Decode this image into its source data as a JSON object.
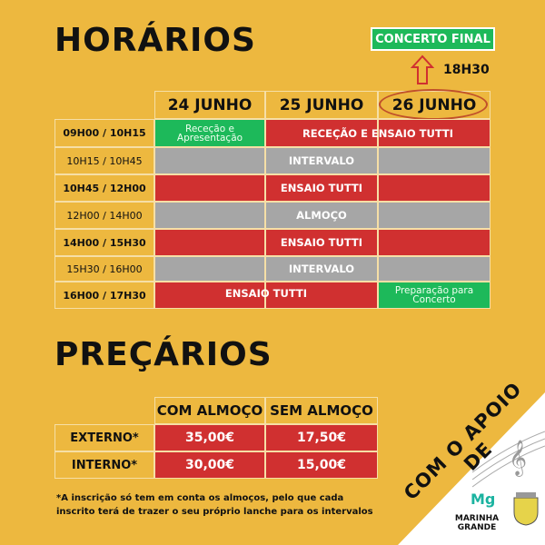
{
  "schedule": {
    "title": "HORÁRIOS",
    "concert_label": "CONCERTO FINAL",
    "concert_time": "18H30",
    "days": [
      "24 JUNHO",
      "25 JUNHO",
      "26 JUNHO"
    ],
    "times": [
      "09H00 / 10H15",
      "10H15 / 10H45",
      "10H45 / 12H00",
      "12H00 / 14H00",
      "14H00 / 15H30",
      "15H30 / 16H00",
      "16H00 / 17H30"
    ],
    "activities": {
      "rececao_apresentacao": "Receção e Apresentação",
      "rececao_ensaio": "RECEÇÃO E ENSAIO TUTTI",
      "intervalo": "INTERVALO",
      "ensaio": "ENSAIO TUTTI",
      "almoco": "ALMOÇO",
      "preparacao": "Preparação para Concerto"
    },
    "colors": {
      "ensaio": "#D03030",
      "pausa": "#A6A6A6",
      "especial": "#1DB95A",
      "background": "#EDB83F"
    }
  },
  "prices": {
    "title": "PREÇÁRIOS",
    "columns": [
      "COM ALMOÇO",
      "SEM ALMOÇO"
    ],
    "rows": [
      {
        "label": "EXTERNO*",
        "values": [
          "35,00€",
          "17,50€"
        ]
      },
      {
        "label": "INTERNO*",
        "values": [
          "30,00€",
          "15,00€"
        ]
      }
    ],
    "note": "*A inscrição só tem em conta os almoços, pelo que cada inscrito terá de trazer o seu próprio lanche para os intervalos"
  },
  "support": {
    "label": "COM O APOIO DE",
    "sponsor": "MARINHA GRANDE"
  }
}
